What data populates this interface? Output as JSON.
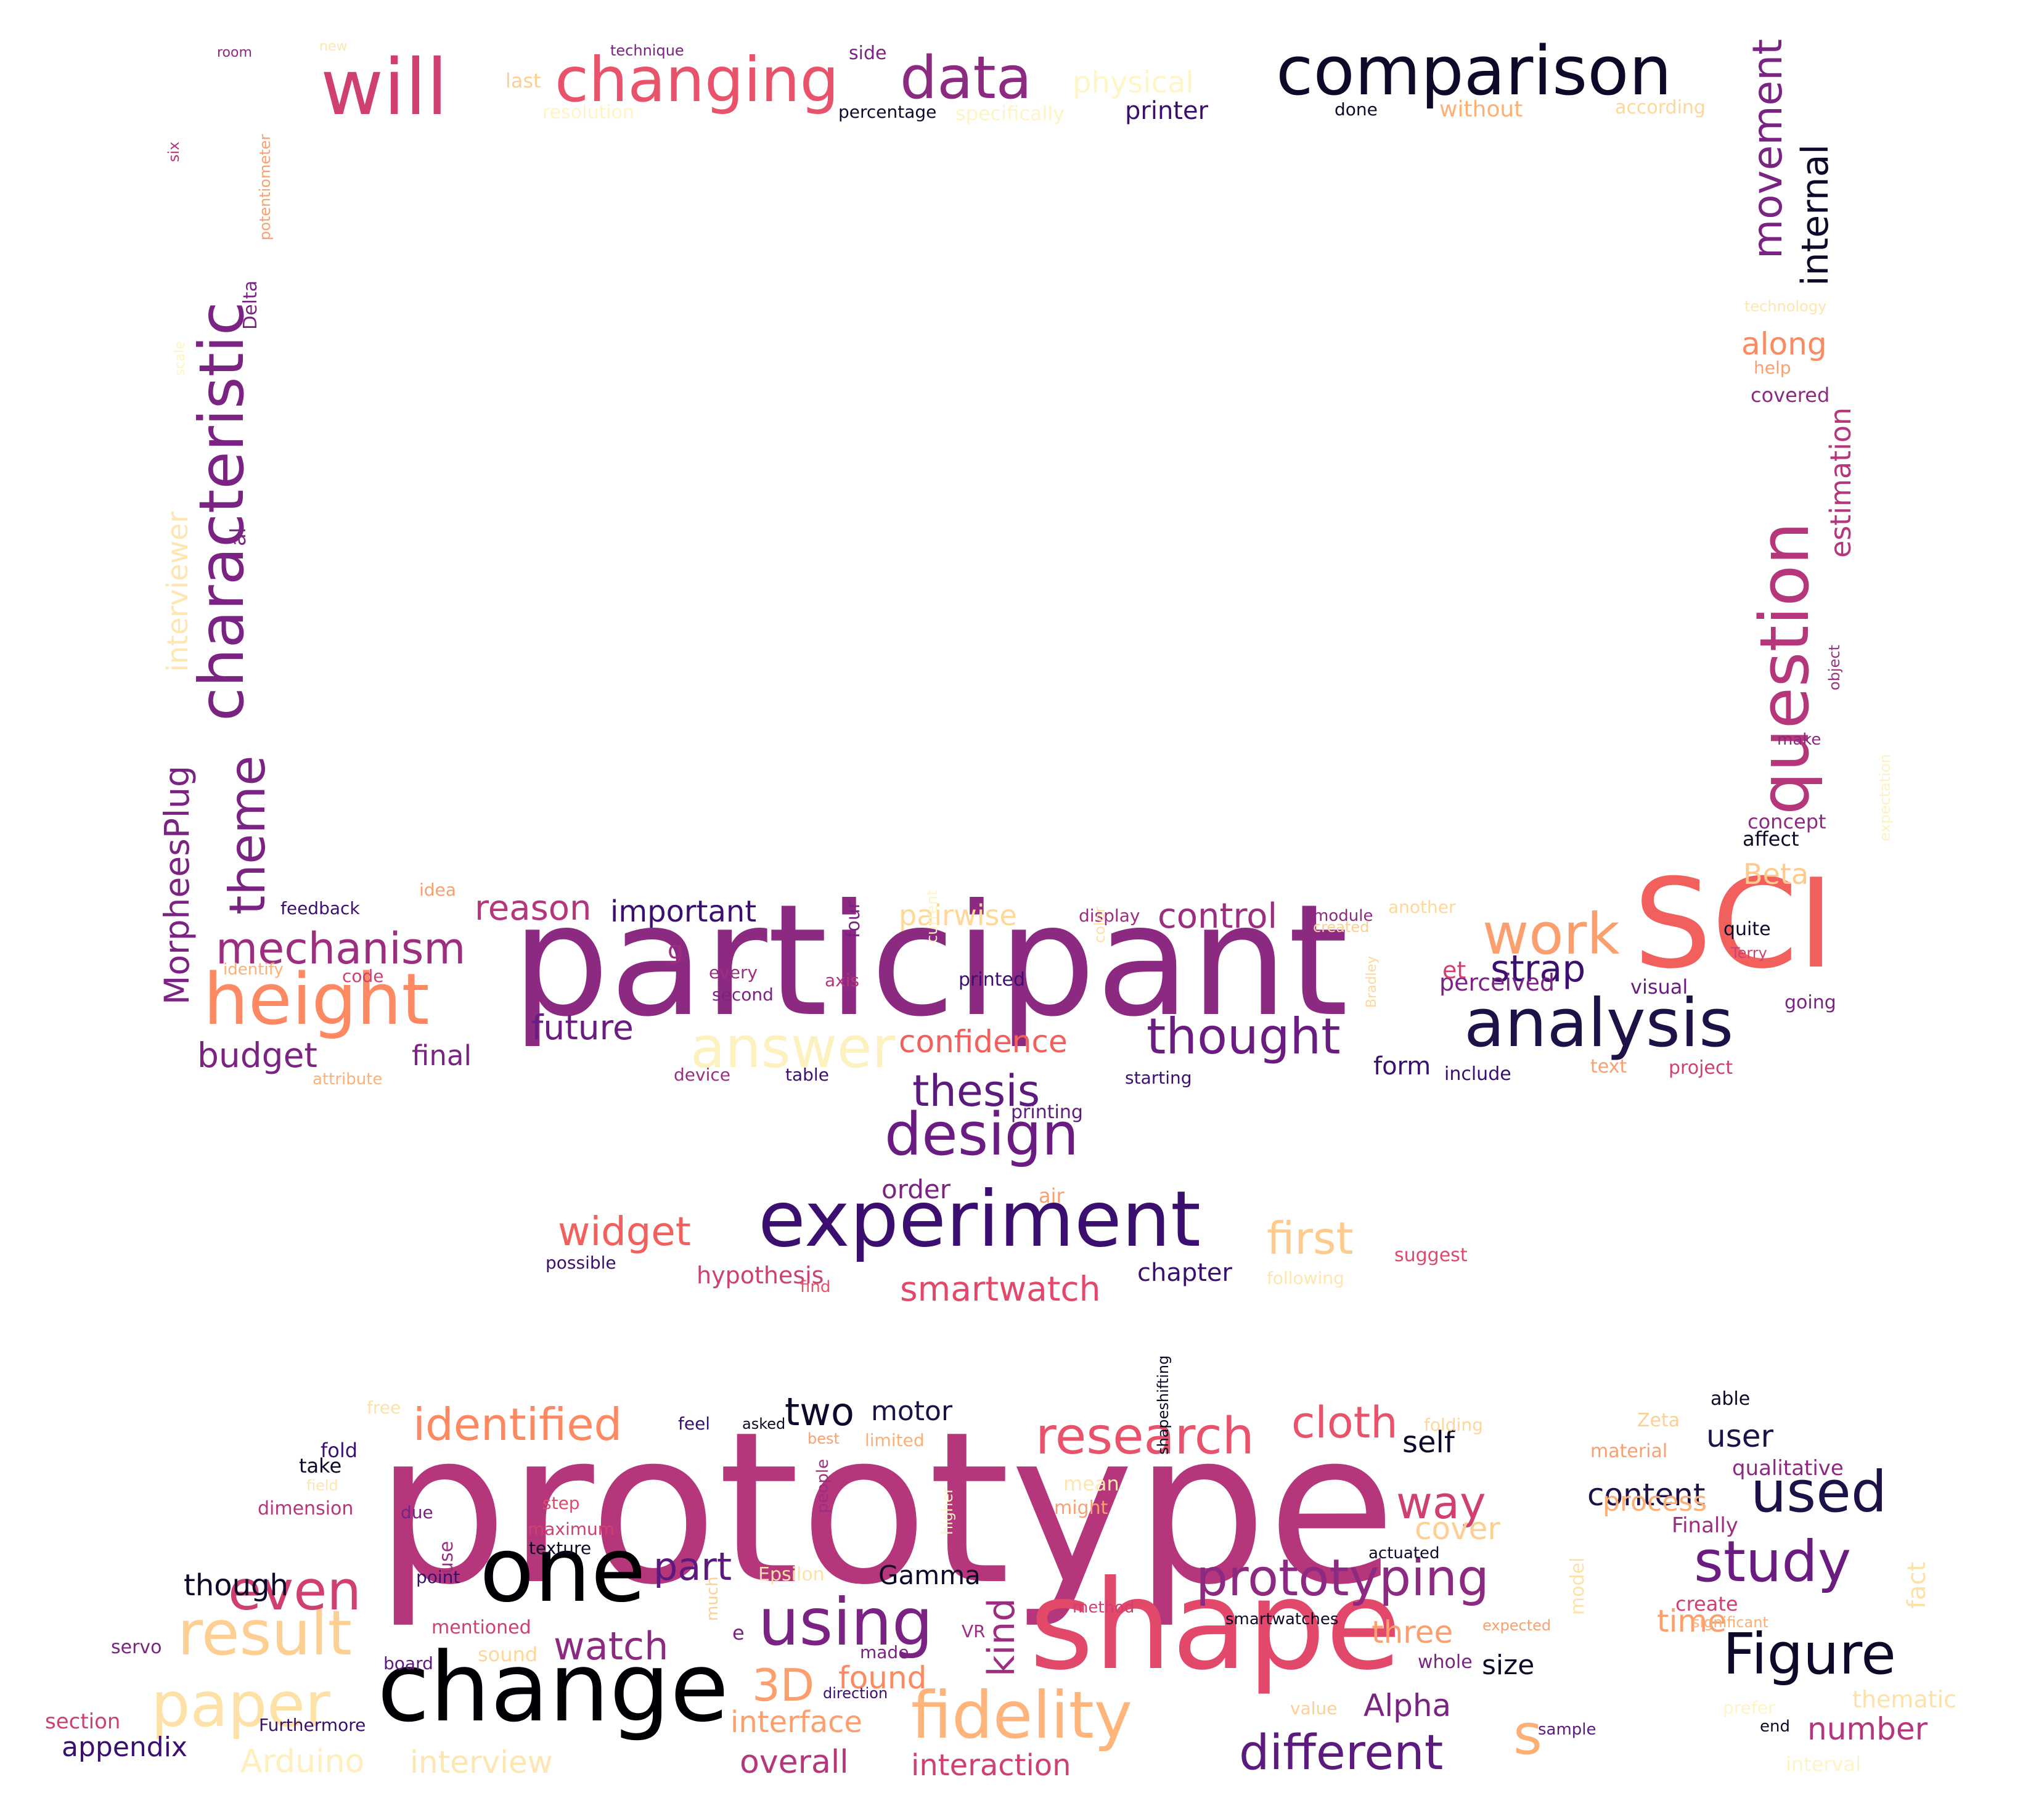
{
  "words": [
    {
      "text": "prototype",
      "color": "#b5367a"
    },
    {
      "text": "participant",
      "color": "#8c2981"
    },
    {
      "text": "shape",
      "color": "#e1486a"
    },
    {
      "text": "change",
      "color": "#000004"
    },
    {
      "text": "SCI",
      "color": "#f1605d"
    },
    {
      "text": "characteristic",
      "color": "#7b2382"
    },
    {
      "text": "experiment",
      "color": "#3b0f70"
    },
    {
      "text": "one",
      "color": "#000004"
    },
    {
      "text": "height",
      "color": "#fc8961"
    },
    {
      "text": "analysis",
      "color": "#1d1147"
    },
    {
      "text": "question",
      "color": "#b5367a"
    },
    {
      "text": "comparison",
      "color": "#0d0a29"
    },
    {
      "text": "will",
      "color": "#cf4070"
    },
    {
      "text": "changing",
      "color": "#e8526a"
    },
    {
      "text": "data",
      "color": "#8c2981"
    },
    {
      "text": "design",
      "color": "#6a1c81"
    },
    {
      "text": "fidelity",
      "color": "#feb47b"
    },
    {
      "text": "study",
      "color": "#6a1c81"
    },
    {
      "text": "Figure",
      "color": "#0d0a29"
    },
    {
      "text": "used",
      "color": "#1d1147"
    },
    {
      "text": "prototyping",
      "color": "#8c2981"
    },
    {
      "text": "using",
      "color": "#7b2382"
    },
    {
      "text": "result",
      "color": "#fecf92"
    },
    {
      "text": "paper",
      "color": "#fee1a7"
    },
    {
      "text": "research",
      "color": "#e8526a"
    },
    {
      "text": "movement",
      "color": "#7b2382"
    },
    {
      "text": "theme",
      "color": "#7b2382"
    },
    {
      "text": "answer",
      "color": "#fdf1c0"
    },
    {
      "text": "work",
      "color": "#fc9f6f"
    },
    {
      "text": "thought",
      "color": "#6a1c81"
    },
    {
      "text": "different",
      "color": "#5c1a7e"
    },
    {
      "text": "mechanism",
      "color": "#9c2e7f"
    },
    {
      "text": "internal",
      "color": "#0d0a29"
    },
    {
      "text": "MorpheesPlug",
      "color": "#7b2382"
    },
    {
      "text": "interviewer",
      "color": "#fee6b0"
    },
    {
      "text": "thesis",
      "color": "#5c1a7e"
    },
    {
      "text": "identified",
      "color": "#fc8961"
    },
    {
      "text": "even",
      "color": "#cf4070"
    },
    {
      "text": "cloth",
      "color": "#e8526a"
    },
    {
      "text": "way",
      "color": "#cf4070"
    },
    {
      "text": "first",
      "color": "#fecb8c"
    },
    {
      "text": "widget",
      "color": "#f1605d"
    },
    {
      "text": "3D",
      "color": "#fc9f6f"
    },
    {
      "text": "s",
      "color": "#fcb075"
    },
    {
      "text": "two",
      "color": "#0d0a29"
    },
    {
      "text": "part",
      "color": "#5c1a7e"
    },
    {
      "text": "watch",
      "color": "#8c2981"
    },
    {
      "text": "kind",
      "color": "#9c2e7f"
    },
    {
      "text": "control",
      "color": "#9c2e7f"
    },
    {
      "text": "strap",
      "color": "#3b0f70"
    },
    {
      "text": "reason",
      "color": "#b5367a"
    },
    {
      "text": "important",
      "color": "#3b0f70"
    },
    {
      "text": "future",
      "color": "#6a1c81"
    },
    {
      "text": "budget",
      "color": "#7b2382"
    },
    {
      "text": "confidence",
      "color": "#f1605d"
    },
    {
      "text": "smartwatch",
      "color": "#e1486a"
    },
    {
      "text": "along",
      "color": "#fc8961"
    },
    {
      "text": "estimation",
      "color": "#b5367a"
    },
    {
      "text": "Beta",
      "color": "#fecb8c"
    },
    {
      "text": "found",
      "color": "#fc8961"
    },
    {
      "text": "interface",
      "color": "#fc9f6f"
    },
    {
      "text": "overall",
      "color": "#b5367a"
    },
    {
      "text": "interaction",
      "color": "#cf4070"
    },
    {
      "text": "interview",
      "color": "#fee6b0"
    },
    {
      "text": "Arduino",
      "color": "#feefbc"
    },
    {
      "text": "appendix",
      "color": "#3b0f70"
    },
    {
      "text": "Alpha",
      "color": "#7b2382"
    },
    {
      "text": "number",
      "color": "#b5367a"
    },
    {
      "text": "time",
      "color": "#fc9f6f"
    },
    {
      "text": "content",
      "color": "#1d1147"
    },
    {
      "text": "process",
      "color": "#fcb075"
    },
    {
      "text": "user",
      "color": "#1d1147"
    },
    {
      "text": "three",
      "color": "#fc9f6f"
    },
    {
      "text": "size",
      "color": "#0d0a29"
    },
    {
      "text": "cover",
      "color": "#fecf92"
    },
    {
      "text": "self",
      "color": "#0d0a29"
    },
    {
      "text": "motor",
      "color": "#1d1147"
    },
    {
      "text": "Gamma",
      "color": "#0d0a29"
    },
    {
      "text": "though",
      "color": "#0d0a29"
    },
    {
      "text": "physical",
      "color": "#fef6c6"
    },
    {
      "text": "printer",
      "color": "#3b0f70"
    },
    {
      "text": "order",
      "color": "#7b2382"
    },
    {
      "text": "chapter",
      "color": "#3b0f70"
    },
    {
      "text": "hypothesis",
      "color": "#cf4070"
    },
    {
      "text": "final",
      "color": "#7b2382"
    },
    {
      "text": "form",
      "color": "#3b0f70"
    },
    {
      "text": "perceived",
      "color": "#7b2382"
    },
    {
      "text": "et",
      "color": "#cf4070"
    },
    {
      "text": "g",
      "color": "#9c2e7f"
    },
    {
      "text": "pairwise",
      "color": "#fed799"
    },
    {
      "text": "thematic",
      "color": "#fee1a7"
    },
    {
      "text": "qualitative",
      "color": "#8c2981"
    },
    {
      "text": "Finally",
      "color": "#9c2e7f"
    },
    {
      "text": "model",
      "color": "#fee1a7"
    },
    {
      "text": "fact",
      "color": "#fee1a7"
    },
    {
      "text": "last",
      "color": "#fecf92"
    },
    {
      "text": "side",
      "color": "#7b2382"
    },
    {
      "text": "without",
      "color": "#fcb075"
    },
    {
      "text": "according",
      "color": "#fed799"
    },
    {
      "text": "done",
      "color": "#0d0a29"
    },
    {
      "text": "percentage",
      "color": "#0d0a29"
    },
    {
      "text": "resolution",
      "color": "#fef4c5"
    },
    {
      "text": "specifically",
      "color": "#fef4c5"
    },
    {
      "text": "technique",
      "color": "#7b2382"
    },
    {
      "text": "new",
      "color": "#fee6b0"
    },
    {
      "text": "room",
      "color": "#8c2981"
    },
    {
      "text": "potentiometer",
      "color": "#fc9f6f"
    },
    {
      "text": "six",
      "color": "#b5367a"
    },
    {
      "text": "Delta",
      "color": "#7b2382"
    },
    {
      "text": "scale",
      "color": "#fef4c5"
    },
    {
      "text": "al",
      "color": "#7b2382"
    },
    {
      "text": "technology",
      "color": "#fee6b0"
    },
    {
      "text": "help",
      "color": "#fc9f6f"
    },
    {
      "text": "covered",
      "color": "#8c2981"
    },
    {
      "text": "object",
      "color": "#9c2e7f"
    },
    {
      "text": "make",
      "color": "#8c2981"
    },
    {
      "text": "concept",
      "color": "#8c2981"
    },
    {
      "text": "affect",
      "color": "#0d0a29"
    },
    {
      "text": "expectation",
      "color": "#fef1c3"
    },
    {
      "text": "quite",
      "color": "#0d0a29"
    },
    {
      "text": "Terry",
      "color": "#cf4070"
    },
    {
      "text": "going",
      "color": "#7b2382"
    },
    {
      "text": "visual",
      "color": "#6a1c81"
    },
    {
      "text": "project",
      "color": "#cf4070"
    },
    {
      "text": "text",
      "color": "#fc9f6f"
    },
    {
      "text": "include",
      "color": "#3b0f70"
    },
    {
      "text": "Bradley",
      "color": "#fed799"
    },
    {
      "text": "another",
      "color": "#fed799"
    },
    {
      "text": "module",
      "color": "#8c2981"
    },
    {
      "text": "created",
      "color": "#fecf92"
    },
    {
      "text": "display",
      "color": "#9c2e7f"
    },
    {
      "text": "color",
      "color": "#fee1a7"
    },
    {
      "text": "printed",
      "color": "#3b0f70"
    },
    {
      "text": "current",
      "color": "#fef4c5"
    },
    {
      "text": "starting",
      "color": "#3b0f70"
    },
    {
      "text": "printing",
      "color": "#5c1a7e"
    },
    {
      "text": "air",
      "color": "#fc9f6f"
    },
    {
      "text": "suggest",
      "color": "#e1486a"
    },
    {
      "text": "following",
      "color": "#fee6b0"
    },
    {
      "text": "find",
      "color": "#e8526a"
    },
    {
      "text": "possible",
      "color": "#3b0f70"
    },
    {
      "text": "table",
      "color": "#3b0f70"
    },
    {
      "text": "device",
      "color": "#9c2e7f"
    },
    {
      "text": "axis",
      "color": "#b5367a"
    },
    {
      "text": "four",
      "color": "#7b2382"
    },
    {
      "text": "every",
      "color": "#9c2e7f"
    },
    {
      "text": "second",
      "color": "#7b2382"
    },
    {
      "text": "feedback",
      "color": "#3b0f70"
    },
    {
      "text": "idea",
      "color": "#fc9f6f"
    },
    {
      "text": "identify",
      "color": "#fcb075"
    },
    {
      "text": "code",
      "color": "#cf4070"
    },
    {
      "text": "attribute",
      "color": "#fcb075"
    },
    {
      "text": "free",
      "color": "#fee1a7"
    },
    {
      "text": "fold",
      "color": "#3b0f70"
    },
    {
      "text": "take",
      "color": "#0d0a29"
    },
    {
      "text": "field",
      "color": "#fee6b0"
    },
    {
      "text": "dimension",
      "color": "#b5367a"
    },
    {
      "text": "due",
      "color": "#7b2382"
    },
    {
      "text": "step",
      "color": "#e1486a"
    },
    {
      "text": "maximum",
      "color": "#cf4070"
    },
    {
      "text": "texture",
      "color": "#0d0a29"
    },
    {
      "text": "point",
      "color": "#3b0f70"
    },
    {
      "text": "use",
      "color": "#9c2e7f"
    },
    {
      "text": "mentioned",
      "color": "#cf4070"
    },
    {
      "text": "sound",
      "color": "#fed799"
    },
    {
      "text": "board",
      "color": "#5c1a7e"
    },
    {
      "text": "servo",
      "color": "#7b2382"
    },
    {
      "text": "section",
      "color": "#cf4070"
    },
    {
      "text": "Furthermore",
      "color": "#3b0f70"
    },
    {
      "text": "feel",
      "color": "#3b0f70"
    },
    {
      "text": "asked",
      "color": "#0d0a29"
    },
    {
      "text": "best",
      "color": "#fc9f6f"
    },
    {
      "text": "limited",
      "color": "#fcb075"
    },
    {
      "text": "people",
      "color": "#9c2e7f"
    },
    {
      "text": "Epsilon",
      "color": "#fee1a7"
    },
    {
      "text": "much",
      "color": "#fecf92"
    },
    {
      "text": "e",
      "color": "#7b2382"
    },
    {
      "text": "made",
      "color": "#7b2382"
    },
    {
      "text": "direction",
      "color": "#3b0f70"
    },
    {
      "text": "VR",
      "color": "#9c2e7f"
    },
    {
      "text": "higher",
      "color": "#fef4c5"
    },
    {
      "text": "mean",
      "color": "#fee6b0"
    },
    {
      "text": "might",
      "color": "#fc9f6f"
    },
    {
      "text": "method",
      "color": "#cf4070"
    },
    {
      "text": "shapeshifting",
      "color": "#0d0a29"
    },
    {
      "text": "actuated",
      "color": "#0d0a29"
    },
    {
      "text": "smartwatches",
      "color": "#0d0a29"
    },
    {
      "text": "expected",
      "color": "#fc9f6f"
    },
    {
      "text": "whole",
      "color": "#7b2382"
    },
    {
      "text": "value",
      "color": "#fecf92"
    },
    {
      "text": "sample",
      "color": "#5c1a7e"
    },
    {
      "text": "folding",
      "color": "#fed799"
    },
    {
      "text": "able",
      "color": "#0d0a29"
    },
    {
      "text": "Zeta",
      "color": "#fecf92"
    },
    {
      "text": "material",
      "color": "#fc9f6f"
    },
    {
      "text": "create",
      "color": "#cf4070"
    },
    {
      "text": "significant",
      "color": "#fcb075"
    },
    {
      "text": "prefer",
      "color": "#fef4c5"
    },
    {
      "text": "end",
      "color": "#0d0a29"
    },
    {
      "text": "interval",
      "color": "#fef4c5"
    }
  ]
}
